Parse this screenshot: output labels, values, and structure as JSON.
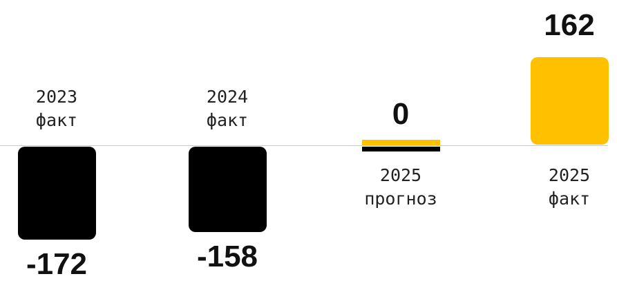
{
  "chart_data": {
    "type": "bar",
    "categories": [
      "2023\nфакт",
      "2024\nфакт",
      "2025\nпрогноз",
      "2025\nфакт"
    ],
    "values": [
      -172,
      -158,
      0,
      162
    ],
    "colors": [
      "#000000",
      "#000000",
      "#ffc000",
      "#ffc000"
    ]
  }
}
